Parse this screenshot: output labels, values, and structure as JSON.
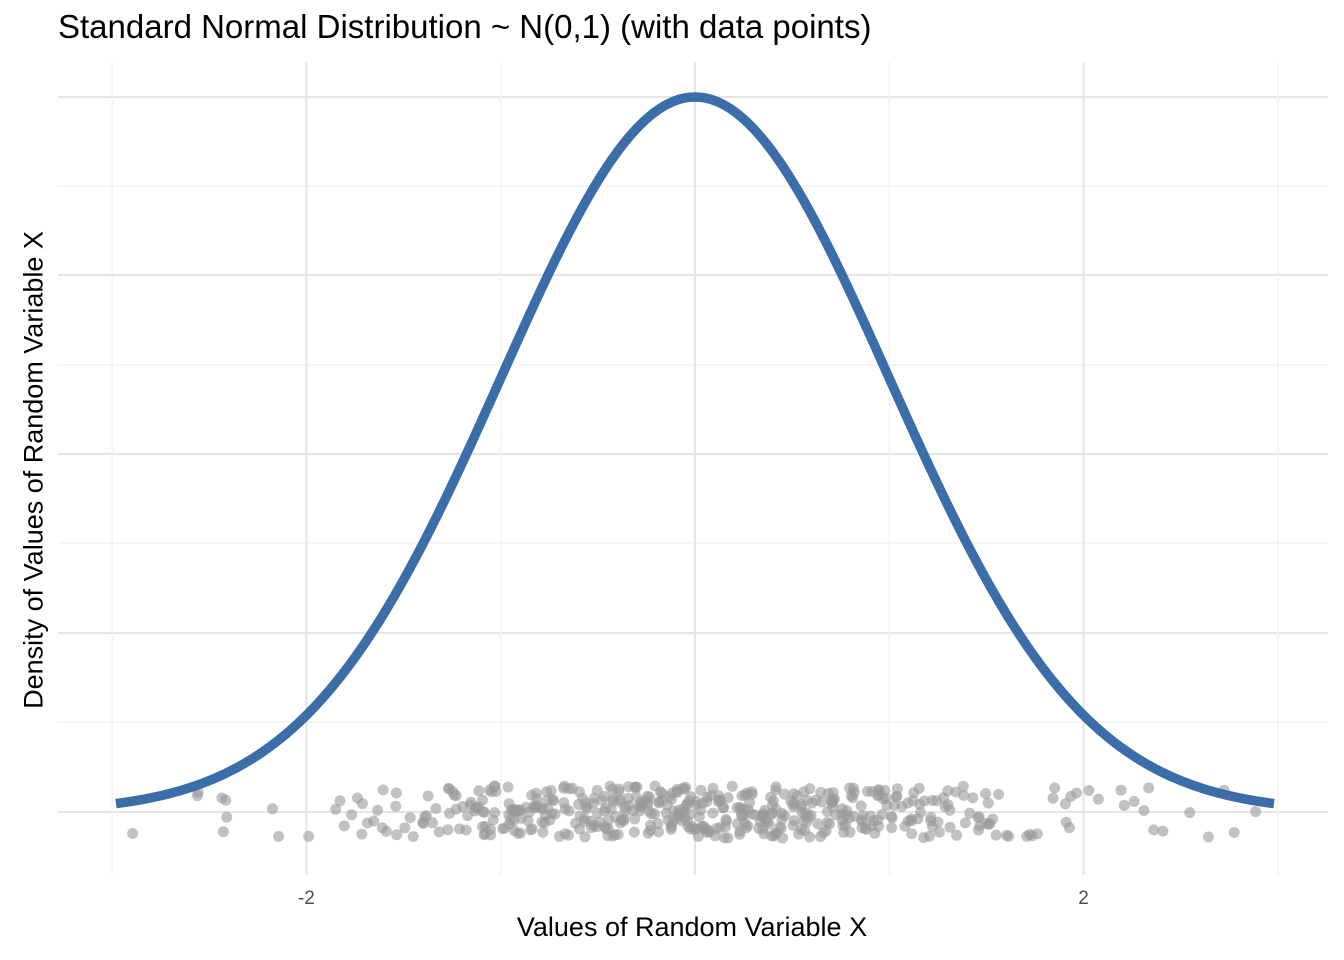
{
  "chart_data": {
    "type": "line",
    "title": "Standard Normal Distribution ~ N(0,1) (with data points)",
    "xlabel": "Values of Random Variable X",
    "ylabel": "Density of Values of Random Variable X",
    "xlim": [
      -3.0,
      3.0
    ],
    "x_ticks": [
      -2,
      2
    ],
    "x_tick_labels": [
      "-2",
      "2"
    ],
    "y_tick_labels": [],
    "grid": true,
    "series": [
      {
        "function": "dnorm(x, 0, 1)",
        "color": "#3b6ea9",
        "x_range": [
          -2.98,
          2.98
        ]
      }
    ],
    "points": {
      "color": "#999999",
      "opacity": 0.6,
      "count": 500,
      "distribution": "N(0,1) sample, jittered near y = 0",
      "x_range_observed": [
        -2.98,
        2.98
      ]
    }
  },
  "colors": {
    "background": "#ffffff",
    "grid_major": "#e5e5e5",
    "grid_minor": "#f2f2f2",
    "curve": "#3b6ea9",
    "points": "#999999"
  }
}
